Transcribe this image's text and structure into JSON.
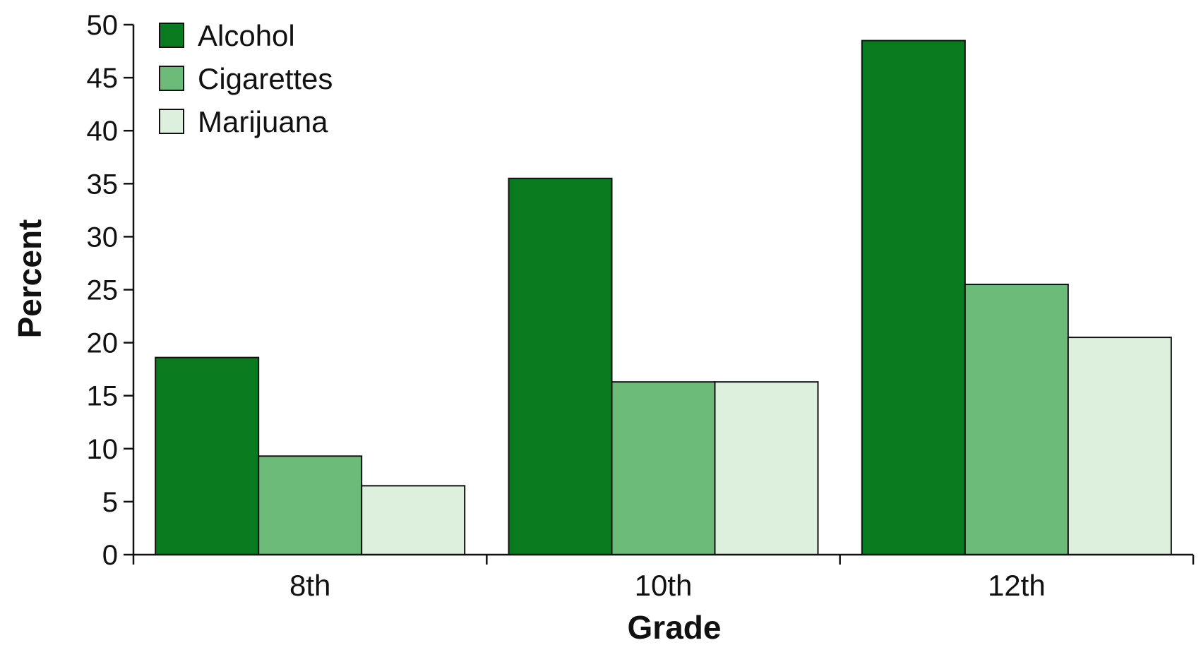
{
  "chart_data": {
    "type": "bar",
    "categories": [
      "8th",
      "10th",
      "12th"
    ],
    "series": [
      {
        "name": "Alcohol",
        "values": [
          18.6,
          35.5,
          48.5
        ],
        "color": "#0a7a1f"
      },
      {
        "name": "Cigarettes",
        "values": [
          9.3,
          16.3,
          25.5
        ],
        "color": "#6dbb78"
      },
      {
        "name": "Marijuana",
        "values": [
          6.5,
          16.3,
          20.5
        ],
        "color": "#dcf0dd"
      }
    ],
    "xlabel": "Grade",
    "ylabel": "Percent",
    "ylim": [
      0,
      50
    ],
    "yticks": [
      "0",
      "5",
      "10",
      "15",
      "20",
      "25",
      "30",
      "35",
      "40",
      "45",
      "50"
    ],
    "legend_position": "top-left",
    "grid": false
  }
}
